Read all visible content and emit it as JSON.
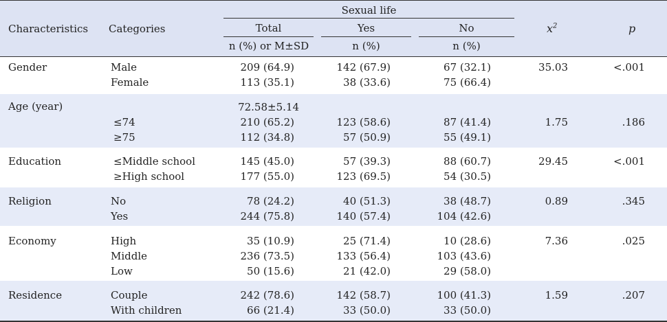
{
  "header": {
    "characteristics": "Characteristics",
    "categories": "Categories",
    "sexual_life": "Sexual life",
    "total": "Total",
    "yes": "Yes",
    "no": "No",
    "total_sub": "n (%) or M±SD",
    "yes_sub": "n (%)",
    "no_sub": "n (%)",
    "chi": "x",
    "chi_sup": "2",
    "p": "p"
  },
  "rows": {
    "gender": {
      "label": "Gender",
      "r1": {
        "cat": "Male",
        "total": "209 (64.9)",
        "yes": "142 (67.9)",
        "no": "67 (32.1)"
      },
      "r2": {
        "cat": "Female",
        "total": "113 (35.1)",
        "yes": "38 (33.6)",
        "no": "75 (66.4)"
      },
      "chi": "35.03",
      "p": "<.001"
    },
    "age": {
      "label": "Age (year)",
      "mean": "72.58±5.14",
      "r1": {
        "cat": "≤74",
        "total": "210 (65.2)",
        "yes": "123 (58.6)",
        "no": "87 (41.4)"
      },
      "r2": {
        "cat": "≥75",
        "total": "112 (34.8)",
        "yes": "57 (50.9)",
        "no": "55 (49.1)"
      },
      "chi": "1.75",
      "p": ".186"
    },
    "education": {
      "label": "Education",
      "r1": {
        "cat": "≤Middle school",
        "total": "145 (45.0)",
        "yes": "57 (39.3)",
        "no": "88 (60.7)"
      },
      "r2": {
        "cat": "≥High school",
        "total": "177 (55.0)",
        "yes": "123 (69.5)",
        "no": "54 (30.5)"
      },
      "chi": "29.45",
      "p": "<.001"
    },
    "religion": {
      "label": "Religion",
      "r1": {
        "cat": "No",
        "total": "78 (24.2)",
        "yes": "40 (51.3)",
        "no": "38 (48.7)"
      },
      "r2": {
        "cat": "Yes",
        "total": "244 (75.8)",
        "yes": "140 (57.4)",
        "no": "104 (42.6)"
      },
      "chi": "0.89",
      "p": ".345"
    },
    "economy": {
      "label": "Economy",
      "r1": {
        "cat": "High",
        "total": "35 (10.9)",
        "yes": "25 (71.4)",
        "no": "10 (28.6)"
      },
      "r2": {
        "cat": "Middle",
        "total": "236 (73.5)",
        "yes": "133 (56.4)",
        "no": "103 (43.6)"
      },
      "r3": {
        "cat": "Low",
        "total": "50 (15.6)",
        "yes": "21 (42.0)",
        "no": "29 (58.0)"
      },
      "chi": "7.36",
      "p": ".025"
    },
    "residence": {
      "label": "Residence",
      "r1": {
        "cat": "Couple",
        "total": "242 (78.6)",
        "yes": "142 (58.7)",
        "no": "100 (41.3)"
      },
      "r2": {
        "cat": "With children",
        "total": "66 (21.4)",
        "yes": "33 (50.0)",
        "no": "33 (50.0)"
      },
      "chi": "1.59",
      "p": ".207"
    }
  }
}
